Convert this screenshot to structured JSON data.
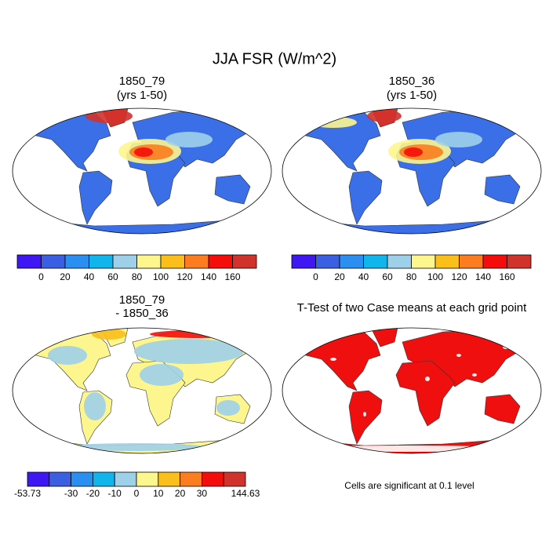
{
  "title": "JJA FSR (W/m^2)",
  "panels": [
    {
      "title": [
        "1850_79",
        "(yrs 1-50)"
      ],
      "colorbar": {
        "colors": [
          "#3f17f2",
          "#3a5fe3",
          "#2a8ff0",
          "#12b4ec",
          "#9fd0ea",
          "#fdf68f",
          "#fbbf1b",
          "#fb7d1f",
          "#f40d0a",
          "#d1322b"
        ],
        "labels": [
          null,
          0,
          20,
          40,
          60,
          80,
          100,
          120,
          140,
          160,
          null
        ]
      }
    },
    {
      "title": [
        "1850_36",
        "(yrs 1-50)"
      ],
      "colorbar": {
        "colors": [
          "#3f17f2",
          "#3a5fe3",
          "#2a8ff0",
          "#12b4ec",
          "#9fd0ea",
          "#fdf68f",
          "#fbbf1b",
          "#fb7d1f",
          "#f40d0a",
          "#d1322b"
        ],
        "labels": [
          null,
          0,
          20,
          40,
          60,
          80,
          100,
          120,
          140,
          160,
          null
        ]
      }
    },
    {
      "title": [
        "1850_79",
        "- 1850_36"
      ],
      "colorbar": {
        "colors": [
          "#3f17f2",
          "#3a5fe3",
          "#2a8ff0",
          "#12b4ec",
          "#9fd0ea",
          "#fdf68f",
          "#fbbf1b",
          "#fb7d1f",
          "#f40d0a",
          "#d1322b"
        ],
        "labels": [
          -53.73,
          null,
          -30,
          -20,
          -10,
          0,
          10,
          20,
          30,
          null,
          144.63
        ]
      }
    },
    {
      "title": [
        "T-Test of two Case means at each grid point"
      ],
      "note": "Cells are significant at 0.1 level"
    }
  ]
}
